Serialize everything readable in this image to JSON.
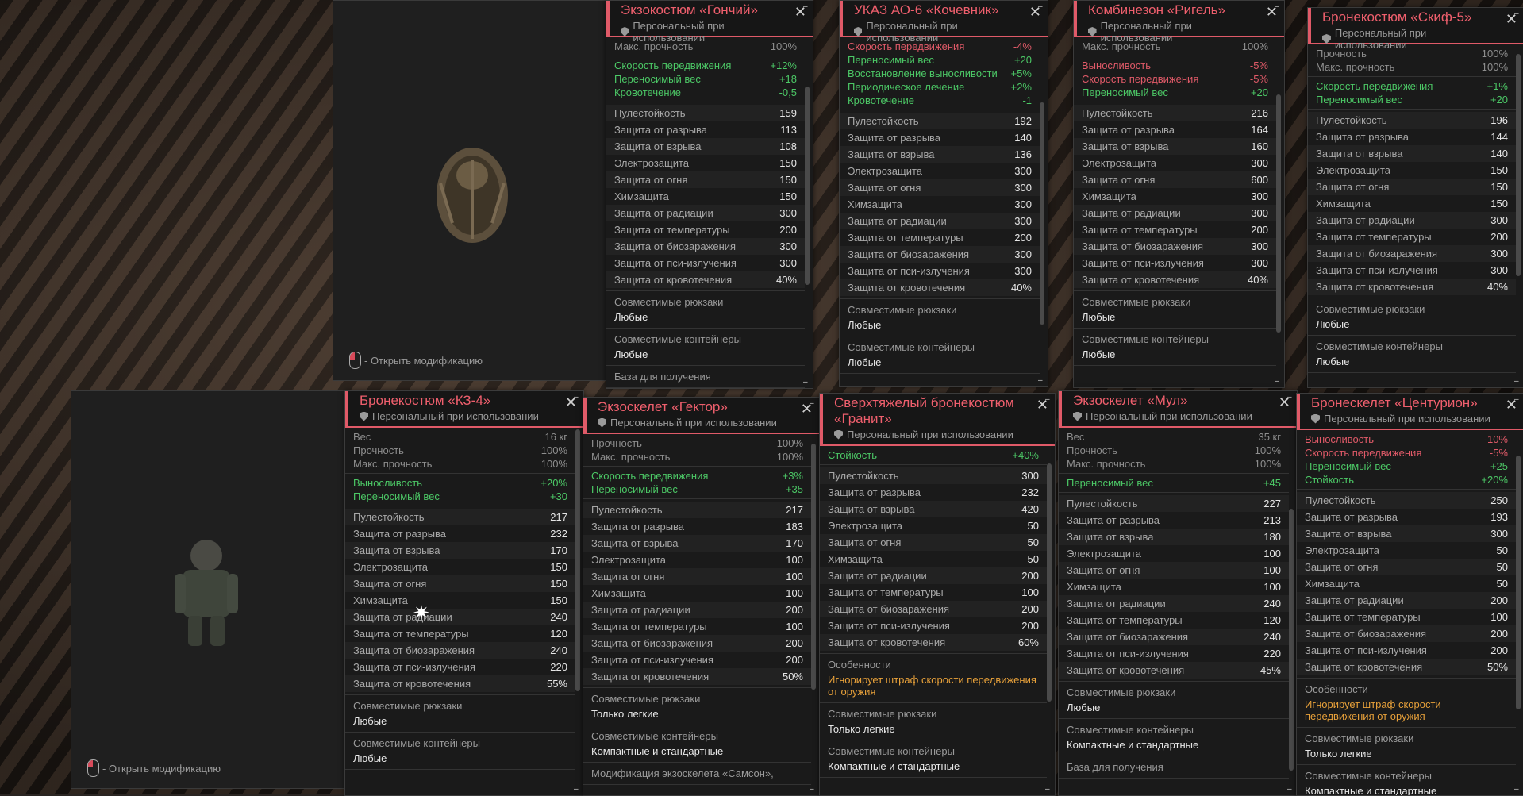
{
  "colors": {
    "accent": "#e05a68",
    "positive": "#4cc866",
    "negative": "#e05a68",
    "feature": "#e8a13a"
  },
  "hint": "- Открыть модификацию",
  "personal": "Персональный при использовании",
  "cards": {
    "gonchiy": {
      "title": "Экзокостюм «Гончий»",
      "top": [
        [
          "Макс. прочность",
          "100%"
        ]
      ],
      "mods": [
        [
          "Скорость передвижения",
          "+12%",
          "g"
        ],
        [
          "Переносимый вес",
          "+18",
          "g"
        ],
        [
          "Кровотечение",
          "-0,5",
          "g"
        ]
      ],
      "stats": [
        [
          "Пулестойкость",
          "159"
        ],
        [
          "Защита от разрыва",
          "113"
        ],
        [
          "Защита от взрыва",
          "108"
        ],
        [
          "Электрозащита",
          "150"
        ],
        [
          "Защита от огня",
          "150"
        ],
        [
          "Химзащита",
          "150"
        ],
        [
          "Защита от радиации",
          "300"
        ],
        [
          "Защита от температуры",
          "200"
        ],
        [
          "Защита от биозаражения",
          "300"
        ],
        [
          "Защита от пси-излучения",
          "300"
        ],
        [
          "Защита от кровотечения",
          "40%"
        ]
      ],
      "backpacks_label": "Совместимые рюкзаки",
      "backpacks": "Любые",
      "containers_label": "Совместимые контейнеры",
      "containers": "Любые",
      "extra": "База для получения"
    },
    "kochevnik": {
      "title": "УКАЗ АО-6 «Кочевник»",
      "mods": [
        [
          "Скорость передвижения",
          "-4%",
          "b"
        ],
        [
          "Переносимый вес",
          "+20",
          "g"
        ],
        [
          "Восстановление выносливости",
          "+5%",
          "g"
        ],
        [
          "Периодическое лечение",
          "+2%",
          "g"
        ],
        [
          "Кровотечение",
          "-1",
          "g"
        ]
      ],
      "stats": [
        [
          "Пулестойкость",
          "192"
        ],
        [
          "Защита от разрыва",
          "140"
        ],
        [
          "Защита от взрыва",
          "136"
        ],
        [
          "Электрозащита",
          "300"
        ],
        [
          "Защита от огня",
          "300"
        ],
        [
          "Химзащита",
          "300"
        ],
        [
          "Защита от радиации",
          "300"
        ],
        [
          "Защита от температуры",
          "200"
        ],
        [
          "Защита от биозаражения",
          "300"
        ],
        [
          "Защита от пси-излучения",
          "300"
        ],
        [
          "Защита от кровотечения",
          "40%"
        ]
      ],
      "backpacks_label": "Совместимые рюкзаки",
      "backpacks": "Любые",
      "containers_label": "Совместимые контейнеры",
      "containers": "Любые"
    },
    "rigel": {
      "title": "Комбинезон «Ригель»",
      "top": [
        [
          "Макс. прочность",
          "100%"
        ]
      ],
      "mods": [
        [
          "Выносливость",
          "-5%",
          "b"
        ],
        [
          "Скорость передвижения",
          "-5%",
          "b"
        ],
        [
          "Переносимый вес",
          "+20",
          "g"
        ]
      ],
      "stats": [
        [
          "Пулестойкость",
          "216"
        ],
        [
          "Защита от разрыва",
          "164"
        ],
        [
          "Защита от взрыва",
          "160"
        ],
        [
          "Электрозащита",
          "300"
        ],
        [
          "Защита от огня",
          "600"
        ],
        [
          "Химзащита",
          "300"
        ],
        [
          "Защита от радиации",
          "300"
        ],
        [
          "Защита от температуры",
          "200"
        ],
        [
          "Защита от биозаражения",
          "300"
        ],
        [
          "Защита от пси-излучения",
          "300"
        ],
        [
          "Защита от кровотечения",
          "40%"
        ]
      ],
      "backpacks_label": "Совместимые рюкзаки",
      "backpacks": "Любые",
      "containers_label": "Совместимые контейнеры",
      "containers": "Любые"
    },
    "skif": {
      "title": "Бронекостюм «Скиф-5»",
      "top": [
        [
          "Прочность",
          "100%"
        ],
        [
          "Макс. прочность",
          "100%"
        ]
      ],
      "mods": [
        [
          "Скорость передвижения",
          "+1%",
          "g"
        ],
        [
          "Переносимый вес",
          "+20",
          "g"
        ]
      ],
      "stats": [
        [
          "Пулестойкость",
          "196"
        ],
        [
          "Защита от разрыва",
          "144"
        ],
        [
          "Защита от взрыва",
          "140"
        ],
        [
          "Электрозащита",
          "150"
        ],
        [
          "Защита от огня",
          "150"
        ],
        [
          "Химзащита",
          "150"
        ],
        [
          "Защита от радиации",
          "300"
        ],
        [
          "Защита от температуры",
          "200"
        ],
        [
          "Защита от биозаражения",
          "300"
        ],
        [
          "Защита от пси-излучения",
          "300"
        ],
        [
          "Защита от кровотечения",
          "40%"
        ]
      ],
      "backpacks_label": "Совместимые рюкзаки",
      "backpacks": "Любые",
      "containers_label": "Совместимые контейнеры",
      "containers": "Любые"
    },
    "kz4": {
      "title": "Бронекостюм «КЗ-4»",
      "top": [
        [
          "Вес",
          "16 кг"
        ],
        [
          "Прочность",
          "100%"
        ],
        [
          "Макс. прочность",
          "100%"
        ]
      ],
      "mods": [
        [
          "Выносливость",
          "+20%",
          "g"
        ],
        [
          "Переносимый вес",
          "+30",
          "g"
        ]
      ],
      "stats": [
        [
          "Пулестойкость",
          "217"
        ],
        [
          "Защита от разрыва",
          "232"
        ],
        [
          "Защита от взрыва",
          "170"
        ],
        [
          "Электрозащита",
          "150"
        ],
        [
          "Защита от огня",
          "150"
        ],
        [
          "Химзащита",
          "150"
        ],
        [
          "Защита от радиации",
          "240"
        ],
        [
          "Защита от температуры",
          "120"
        ],
        [
          "Защита от биозаражения",
          "240"
        ],
        [
          "Защита от пси-излучения",
          "220"
        ],
        [
          "Защита от кровотечения",
          "55%"
        ]
      ],
      "backpacks_label": "Совместимые рюкзаки",
      "backpacks": "Любые",
      "containers_label": "Совместимые контейнеры",
      "containers": "Любые"
    },
    "gektor": {
      "title": "Экзоскелет «Гектор»",
      "top": [
        [
          "Прочность",
          "100%"
        ],
        [
          "Макс. прочность",
          "100%"
        ]
      ],
      "mods": [
        [
          "Скорость передвижения",
          "+3%",
          "g"
        ],
        [
          "Переносимый вес",
          "+35",
          "g"
        ]
      ],
      "stats": [
        [
          "Пулестойкость",
          "217"
        ],
        [
          "Защита от разрыва",
          "183"
        ],
        [
          "Защита от взрыва",
          "170"
        ],
        [
          "Электрозащита",
          "100"
        ],
        [
          "Защита от огня",
          "100"
        ],
        [
          "Химзащита",
          "100"
        ],
        [
          "Защита от радиации",
          "200"
        ],
        [
          "Защита от температуры",
          "100"
        ],
        [
          "Защита от биозаражения",
          "200"
        ],
        [
          "Защита от пси-излучения",
          "200"
        ],
        [
          "Защита от кровотечения",
          "50%"
        ]
      ],
      "backpacks_label": "Совместимые рюкзаки",
      "backpacks": "Только легкие",
      "containers_label": "Совместимые контейнеры",
      "containers": "Компактные и стандартные",
      "extra": "Модификация экзоскелета «Самсон»,"
    },
    "granit": {
      "title": "Сверхтяжелый бронекостюм «Гранит»",
      "mods": [
        [
          "Стойкость",
          "+40%",
          "g"
        ]
      ],
      "stats": [
        [
          "Пулестойкость",
          "300"
        ],
        [
          "Защита от разрыва",
          "232"
        ],
        [
          "Защита от взрыва",
          "420"
        ],
        [
          "Электрозащита",
          "50"
        ],
        [
          "Защита от огня",
          "50"
        ],
        [
          "Химзащита",
          "50"
        ],
        [
          "Защита от радиации",
          "200"
        ],
        [
          "Защита от температуры",
          "100"
        ],
        [
          "Защита от биозаражения",
          "200"
        ],
        [
          "Защита от пси-излучения",
          "200"
        ],
        [
          "Защита от кровотечения",
          "60%"
        ]
      ],
      "feature_label": "Особенности",
      "feature": "Игнорирует штраф скорости передвижения от оружия",
      "backpacks_label": "Совместимые рюкзаки",
      "backpacks": "Только легкие",
      "containers_label": "Совместимые контейнеры",
      "containers": "Компактные и стандартные"
    },
    "mul": {
      "title": "Экзоскелет «Мул»",
      "top": [
        [
          "Вес",
          "35 кг"
        ],
        [
          "Прочность",
          "100%"
        ],
        [
          "Макс. прочность",
          "100%"
        ]
      ],
      "mods": [
        [
          "Переносимый вес",
          "+45",
          "g"
        ]
      ],
      "stats": [
        [
          "Пулестойкость",
          "227"
        ],
        [
          "Защита от разрыва",
          "213"
        ],
        [
          "Защита от взрыва",
          "180"
        ],
        [
          "Электрозащита",
          "100"
        ],
        [
          "Защита от огня",
          "100"
        ],
        [
          "Химзащита",
          "100"
        ],
        [
          "Защита от радиации",
          "240"
        ],
        [
          "Защита от температуры",
          "120"
        ],
        [
          "Защита от биозаражения",
          "240"
        ],
        [
          "Защита от пси-излучения",
          "220"
        ],
        [
          "Защита от кровотечения",
          "45%"
        ]
      ],
      "backpacks_label": "Совместимые рюкзаки",
      "backpacks": "Любые",
      "containers_label": "Совместимые контейнеры",
      "containers": "Компактные и стандартные",
      "extra": "База для получения"
    },
    "centurion": {
      "title": "Бронескелет «Центурион»",
      "mods": [
        [
          "Выносливость",
          "-10%",
          "b"
        ],
        [
          "Скорость передвижения",
          "-5%",
          "b"
        ],
        [
          "Переносимый вес",
          "+25",
          "g"
        ],
        [
          "Стойкость",
          "+20%",
          "g"
        ]
      ],
      "stats": [
        [
          "Пулестойкость",
          "250"
        ],
        [
          "Защита от разрыва",
          "193"
        ],
        [
          "Защита от взрыва",
          "300"
        ],
        [
          "Электрозащита",
          "50"
        ],
        [
          "Защита от огня",
          "50"
        ],
        [
          "Химзащита",
          "50"
        ],
        [
          "Защита от радиации",
          "200"
        ],
        [
          "Защита от температуры",
          "100"
        ],
        [
          "Защита от биозаражения",
          "200"
        ],
        [
          "Защита от пси-излучения",
          "200"
        ],
        [
          "Защита от кровотечения",
          "50%"
        ]
      ],
      "feature_label": "Особенности",
      "feature": "Игнорирует штраф скорости передвижения от оружия",
      "backpacks_label": "Совместимые рюкзаки",
      "backpacks": "Только легкие",
      "containers_label": "Совместимые контейнеры",
      "containers": "Компактные и стандартные"
    }
  }
}
